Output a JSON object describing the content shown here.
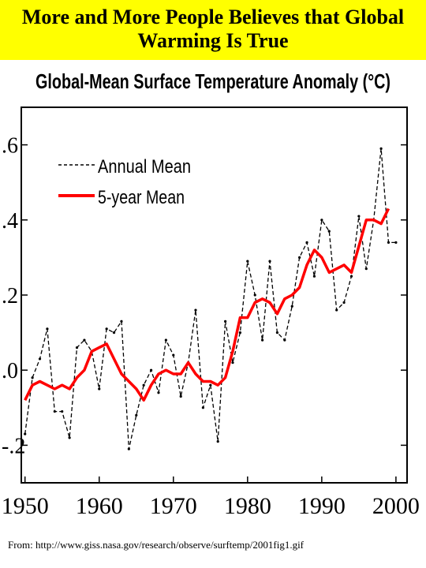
{
  "slide": {
    "title_line1": "More and More People Believes that Global",
    "title_line2": "Warming Is True",
    "source": "From: http://www.giss.nasa.gov/research/observe/surftemp/2001fig1.gif",
    "banner_color": "#ffff00"
  },
  "chart_data": {
    "type": "line",
    "title": "Global-Mean Surface Temperature Anomaly (°C)",
    "xlabel": "",
    "ylabel": "",
    "xlim": [
      1950,
      2001
    ],
    "ylim": [
      -0.3,
      0.7
    ],
    "x_ticks": [
      1950,
      1960,
      1970,
      1980,
      1990,
      2000
    ],
    "x_tick_labels": [
      "1950",
      "1960",
      "1970",
      "1980",
      "1990",
      "2000"
    ],
    "y_ticks": [
      0.6,
      0.4,
      0.2,
      0.0,
      -0.2
    ],
    "y_tick_labels": [
      ".6",
      ".4",
      ".2",
      ".0",
      "-.2"
    ],
    "grid": false,
    "legend_position": "top-left",
    "series": [
      {
        "name": "Annual Mean",
        "style": "dashed",
        "color": "#000000",
        "x": [
          1950,
          1951,
          1952,
          1953,
          1954,
          1955,
          1956,
          1957,
          1958,
          1959,
          1960,
          1961,
          1962,
          1963,
          1964,
          1965,
          1966,
          1967,
          1968,
          1969,
          1970,
          1971,
          1972,
          1973,
          1974,
          1975,
          1976,
          1977,
          1978,
          1979,
          1980,
          1981,
          1982,
          1983,
          1984,
          1985,
          1986,
          1987,
          1988,
          1989,
          1990,
          1991,
          1992,
          1993,
          1994,
          1995,
          1996,
          1997,
          1998,
          1999,
          2000
        ],
        "y": [
          -0.17,
          -0.02,
          0.03,
          0.11,
          -0.11,
          -0.11,
          -0.18,
          0.06,
          0.08,
          0.05,
          -0.05,
          0.11,
          0.1,
          0.13,
          -0.21,
          -0.12,
          -0.04,
          0.0,
          -0.06,
          0.08,
          0.04,
          -0.07,
          0.02,
          0.16,
          -0.1,
          -0.04,
          -0.19,
          0.13,
          0.02,
          0.1,
          0.29,
          0.2,
          0.08,
          0.29,
          0.1,
          0.08,
          0.17,
          0.3,
          0.34,
          0.25,
          0.4,
          0.37,
          0.16,
          0.18,
          0.25,
          0.41,
          0.27,
          0.4,
          0.59,
          0.34,
          0.34
        ]
      },
      {
        "name": "5-year Mean",
        "style": "solid",
        "color": "#ff0000",
        "x": [
          1950,
          1951,
          1952,
          1953,
          1954,
          1955,
          1956,
          1957,
          1958,
          1959,
          1960,
          1961,
          1962,
          1963,
          1964,
          1965,
          1966,
          1967,
          1968,
          1969,
          1970,
          1971,
          1972,
          1973,
          1974,
          1975,
          1976,
          1977,
          1978,
          1979,
          1980,
          1981,
          1982,
          1983,
          1984,
          1985,
          1986,
          1987,
          1988,
          1989,
          1990,
          1991,
          1992,
          1993,
          1994,
          1995,
          1996,
          1997,
          1998,
          1999
        ],
        "y": [
          -0.08,
          -0.04,
          -0.03,
          -0.04,
          -0.05,
          -0.04,
          -0.05,
          -0.02,
          0.0,
          0.05,
          0.06,
          0.07,
          0.03,
          -0.01,
          -0.03,
          -0.05,
          -0.08,
          -0.04,
          -0.01,
          0.0,
          -0.01,
          -0.01,
          0.02,
          -0.01,
          -0.03,
          -0.03,
          -0.04,
          -0.02,
          0.05,
          0.14,
          0.14,
          0.18,
          0.19,
          0.18,
          0.15,
          0.19,
          0.2,
          0.22,
          0.28,
          0.32,
          0.3,
          0.26,
          0.27,
          0.28,
          0.26,
          0.33,
          0.4,
          0.4,
          0.39,
          0.43
        ]
      }
    ]
  }
}
